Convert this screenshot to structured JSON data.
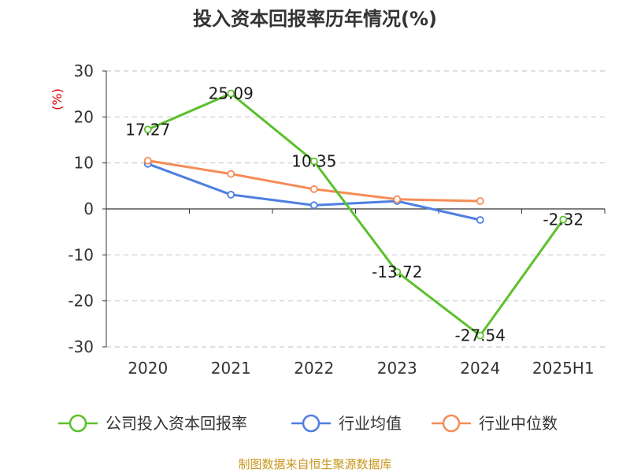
{
  "chart_data": {
    "type": "line",
    "title": "投入资本回报率历年情况(%)",
    "ylabel": "(%)",
    "categories": [
      "2020",
      "2021",
      "2022",
      "2023",
      "2024",
      "2025H1"
    ],
    "ylim": [
      -30,
      30
    ],
    "yticks": [
      30,
      20,
      10,
      0,
      -10,
      -20,
      -30
    ],
    "grid": true,
    "legend_position": "bottom",
    "series": [
      {
        "name": "公司投入资本回报率",
        "color": "#5cc02b",
        "values": [
          17.27,
          25.09,
          10.35,
          -13.72,
          -27.54,
          -2.32
        ],
        "labels": [
          "17.27",
          "25.09",
          "10.35",
          "-13.72",
          "-27.54",
          "-2.32"
        ]
      },
      {
        "name": "行业均值",
        "color": "#4f7fdf",
        "values": [
          9.8,
          3.1,
          0.8,
          1.7,
          -2.4,
          null
        ]
      },
      {
        "name": "行业中位数",
        "color": "#f58c57",
        "values": [
          10.5,
          7.6,
          4.3,
          2.1,
          1.7,
          null
        ]
      }
    ]
  },
  "source_text": "制图数据来自恒生聚源数据库"
}
